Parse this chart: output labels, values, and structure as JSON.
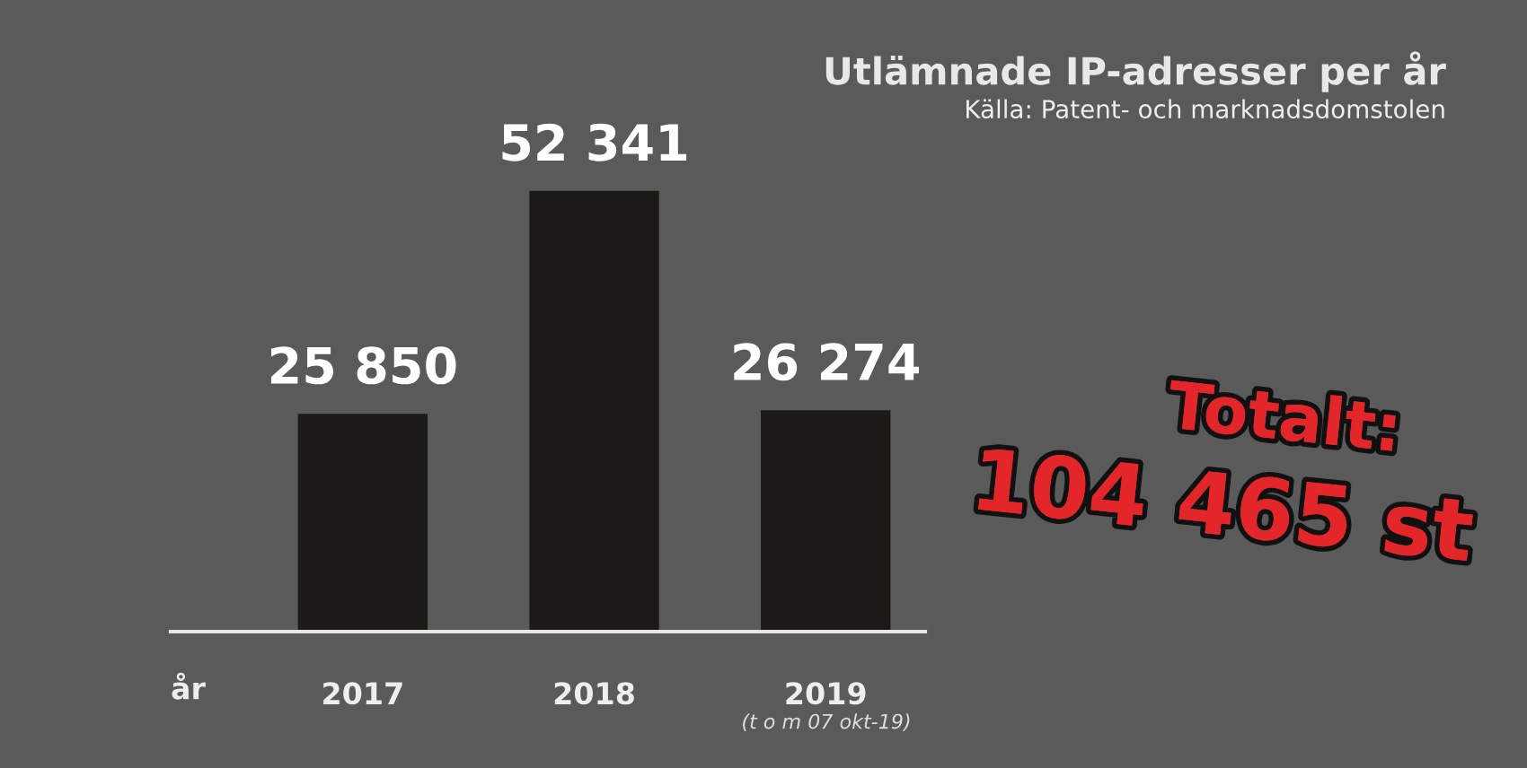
{
  "chart_data": {
    "type": "bar",
    "title": "Utlämnade IP-adresser per år",
    "categories": [
      "2017",
      "2018",
      "2019"
    ],
    "values": [
      25850,
      52341,
      26274
    ],
    "value_labels": [
      "25 850",
      "52 341",
      "26 274"
    ],
    "color": "#1c1a17",
    "xlabel": "år",
    "annotations": [
      "Källa: Patent- och marknadsdomstolen",
      "(t o m 07 okt-19)",
      "Totalt:",
      "104 465 st"
    ],
    "grid": false,
    "legend": false
  }
}
